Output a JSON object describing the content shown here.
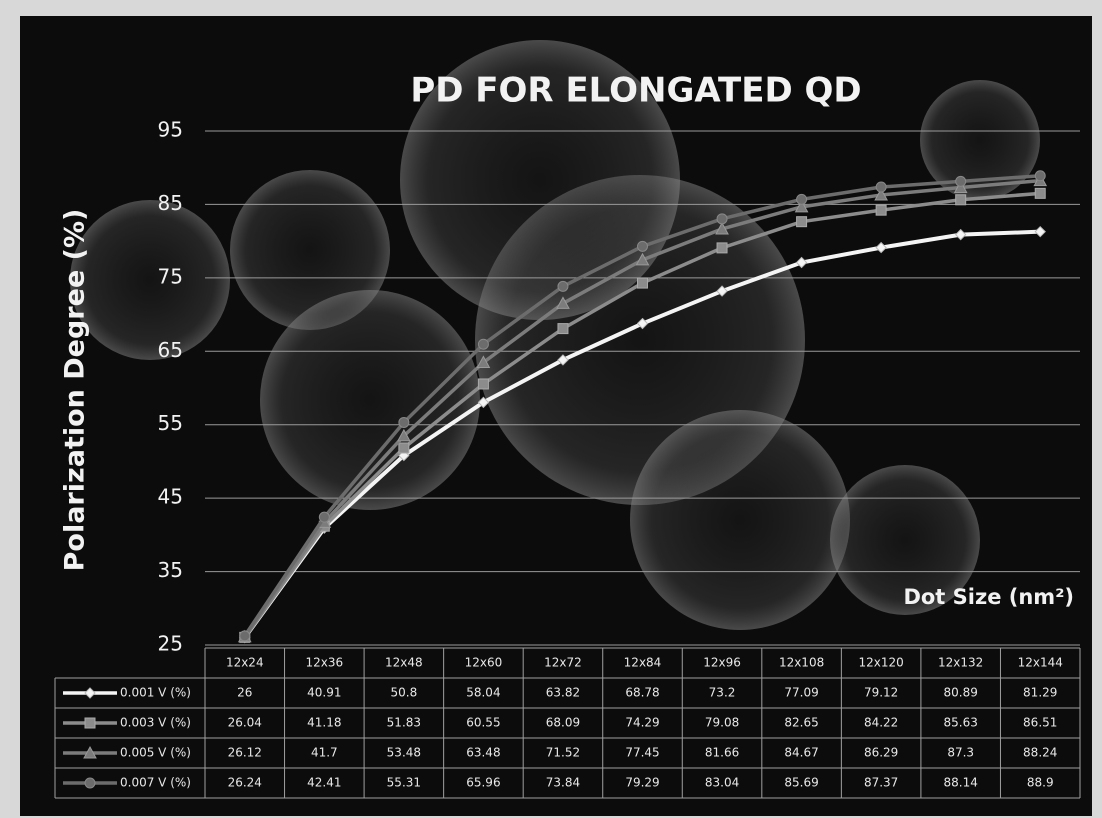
{
  "chart_data": {
    "type": "line",
    "title": "PD FOR ELONGATED QD",
    "y_label": "Polarization Degree (%)",
    "x_label": "Dot Size (nm²)",
    "categories": [
      "12x24",
      "12x36",
      "12x48",
      "12x60",
      "12x72",
      "12x84",
      "12x96",
      "12x108",
      "12x120",
      "12x132",
      "12x144"
    ],
    "series": [
      {
        "name": "0.001 V (%)",
        "color": "#f4f4f4",
        "values": [
          26,
          40.91,
          50.8,
          58.04,
          63.82,
          68.78,
          73.2,
          77.09,
          79.12,
          80.89,
          81.29
        ]
      },
      {
        "name": "0.003 V (%)",
        "color": "#8c8c8c",
        "values": [
          26.04,
          41.18,
          51.83,
          60.55,
          68.09,
          74.29,
          79.08,
          82.65,
          84.22,
          85.63,
          86.51
        ]
      },
      {
        "name": "0.005 V (%)",
        "color": "#7c7c7c",
        "values": [
          26.12,
          41.7,
          53.48,
          63.48,
          71.52,
          77.45,
          81.66,
          84.67,
          86.29,
          87.3,
          88.24
        ]
      },
      {
        "name": "0.007 V (%)",
        "color": "#6c6c6c",
        "values": [
          26.24,
          42.41,
          55.31,
          65.96,
          73.84,
          79.29,
          83.04,
          85.69,
          87.37,
          88.14,
          88.9
        ]
      }
    ],
    "ylim": [
      25,
      95
    ],
    "yticks": [
      25,
      35,
      45,
      55,
      65,
      75,
      85,
      95
    ],
    "grid": true
  }
}
